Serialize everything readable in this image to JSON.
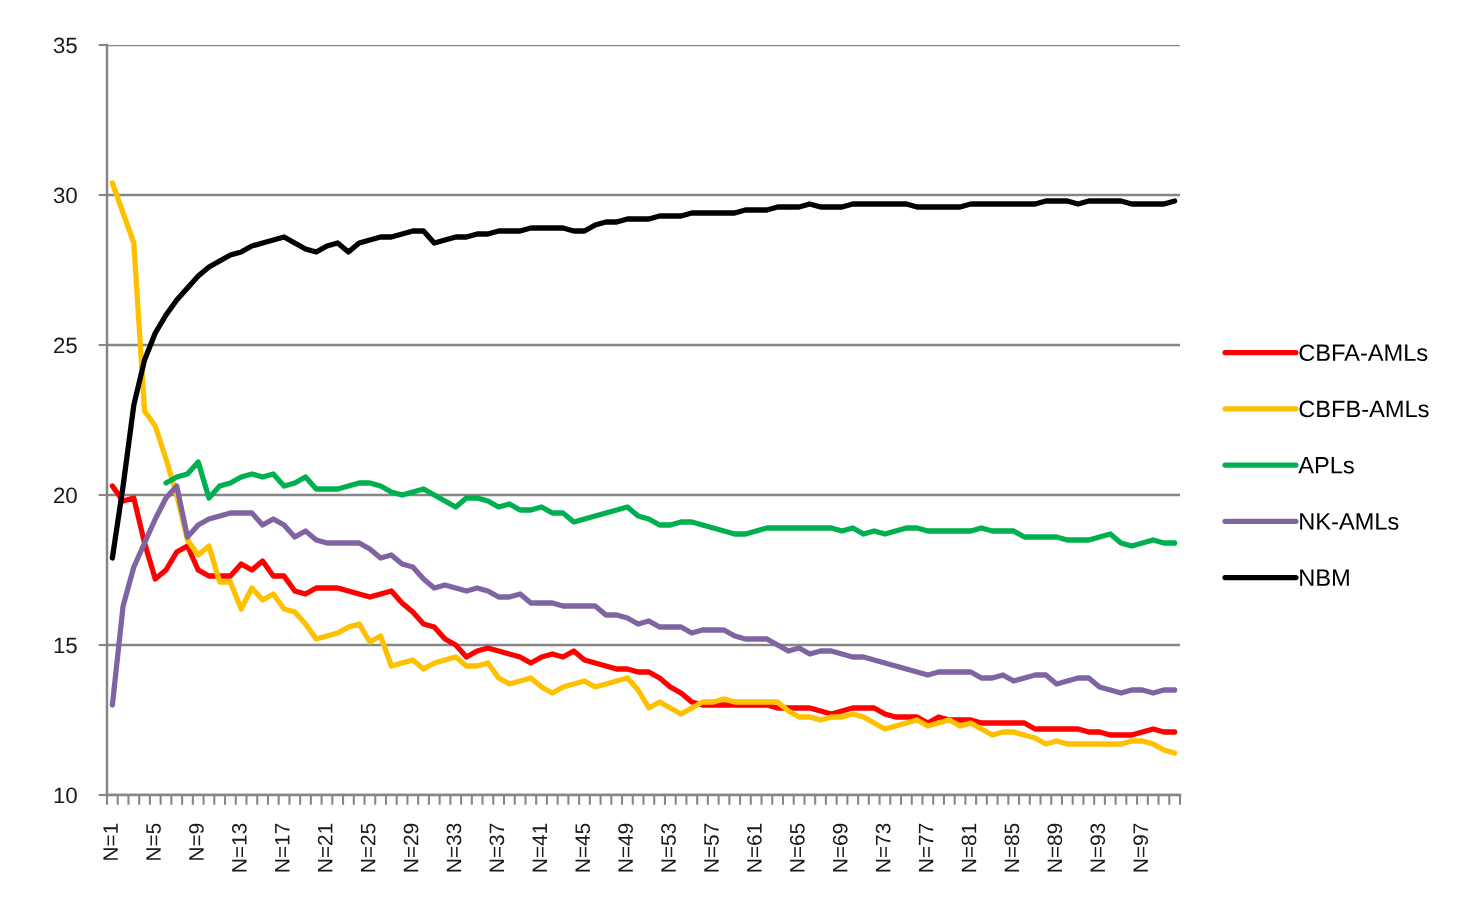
{
  "chart_data": {
    "type": "line",
    "categories": [
      "N=1",
      null,
      null,
      null,
      "N=5",
      null,
      null,
      null,
      "N=9",
      null,
      null,
      null,
      "N=13",
      null,
      null,
      null,
      "N=17",
      null,
      null,
      null,
      "N=21",
      null,
      null,
      null,
      "N=25",
      null,
      null,
      null,
      "N=29",
      null,
      null,
      null,
      "N=33",
      null,
      null,
      null,
      "N=37",
      null,
      null,
      null,
      "N=41",
      null,
      null,
      null,
      "N=45",
      null,
      null,
      null,
      "N=49",
      null,
      null,
      null,
      "N=53",
      null,
      null,
      null,
      "N=57",
      null,
      null,
      null,
      "N=61",
      null,
      null,
      null,
      "N=65",
      null,
      null,
      null,
      "N=69",
      null,
      null,
      null,
      "N=73",
      null,
      null,
      null,
      "N=77",
      null,
      null,
      null,
      "N=81",
      null,
      null,
      null,
      "N=85",
      null,
      null,
      null,
      "N=89",
      null,
      null,
      null,
      "N=93",
      null,
      null,
      null,
      "N=97",
      null,
      null,
      null
    ],
    "series": [
      {
        "name": "CBFA-AMLs",
        "color": "#ff0000",
        "values": [
          20.3,
          19.8,
          19.9,
          18.4,
          17.2,
          17.5,
          18.1,
          18.3,
          17.5,
          17.3,
          17.3,
          17.3,
          17.7,
          17.5,
          17.8,
          17.3,
          17.3,
          16.8,
          16.7,
          16.9,
          16.9,
          16.9,
          16.8,
          16.7,
          16.6,
          16.7,
          16.8,
          16.4,
          16.1,
          15.7,
          15.6,
          15.2,
          15.0,
          14.6,
          14.8,
          14.9,
          14.8,
          14.7,
          14.6,
          14.4,
          14.6,
          14.7,
          14.6,
          14.8,
          14.5,
          14.4,
          14.3,
          14.2,
          14.2,
          14.1,
          14.1,
          13.9,
          13.6,
          13.4,
          13.1,
          13.0,
          13.0,
          13.0,
          13.0,
          13.0,
          13.0,
          13.0,
          12.9,
          12.9,
          12.9,
          12.9,
          12.8,
          12.7,
          12.8,
          12.9,
          12.9,
          12.9,
          12.7,
          12.6,
          12.6,
          12.6,
          12.4,
          12.6,
          12.5,
          12.5,
          12.5,
          12.4,
          12.4,
          12.4,
          12.4,
          12.4,
          12.2,
          12.2,
          12.2,
          12.2,
          12.2,
          12.1,
          12.1,
          12.0,
          12.0,
          12.0,
          12.1,
          12.2,
          12.1,
          12.1
        ]
      },
      {
        "name": "CBFB-AMLs",
        "color": "#ffc000",
        "values": [
          30.4,
          29.4,
          28.4,
          22.8,
          22.3,
          21.2,
          20.0,
          18.5,
          18.0,
          18.3,
          17.1,
          17.1,
          16.2,
          16.9,
          16.5,
          16.7,
          16.2,
          16.1,
          15.7,
          15.2,
          15.3,
          15.4,
          15.6,
          15.7,
          15.1,
          15.3,
          14.3,
          14.4,
          14.5,
          14.2,
          14.4,
          14.5,
          14.6,
          14.3,
          14.3,
          14.4,
          13.9,
          13.7,
          13.8,
          13.9,
          13.6,
          13.4,
          13.6,
          13.7,
          13.8,
          13.6,
          13.7,
          13.8,
          13.9,
          13.5,
          12.9,
          13.1,
          12.9,
          12.7,
          12.9,
          13.1,
          13.1,
          13.2,
          13.1,
          13.1,
          13.1,
          13.1,
          13.1,
          12.8,
          12.6,
          12.6,
          12.5,
          12.6,
          12.6,
          12.7,
          12.6,
          12.4,
          12.2,
          12.3,
          12.4,
          12.5,
          12.3,
          12.4,
          12.5,
          12.3,
          12.4,
          12.2,
          12.0,
          12.1,
          12.1,
          12.0,
          11.9,
          11.7,
          11.8,
          11.7,
          11.7,
          11.7,
          11.7,
          11.7,
          11.7,
          11.8,
          11.8,
          11.7,
          11.5,
          11.4
        ]
      },
      {
        "name": "APLs",
        "color": "#00b050",
        "values": [
          null,
          null,
          null,
          null,
          null,
          20.4,
          20.6,
          20.7,
          21.1,
          19.9,
          20.3,
          20.4,
          20.6,
          20.7,
          20.6,
          20.7,
          20.3,
          20.4,
          20.6,
          20.2,
          20.2,
          20.2,
          20.3,
          20.4,
          20.4,
          20.3,
          20.1,
          20.0,
          20.1,
          20.2,
          20.0,
          19.8,
          19.6,
          19.9,
          19.9,
          19.8,
          19.6,
          19.7,
          19.5,
          19.5,
          19.6,
          19.4,
          19.4,
          19.1,
          19.2,
          19.3,
          19.4,
          19.5,
          19.6,
          19.3,
          19.2,
          19.0,
          19.0,
          19.1,
          19.1,
          19.0,
          18.9,
          18.8,
          18.7,
          18.7,
          18.8,
          18.9,
          18.9,
          18.9,
          18.9,
          18.9,
          18.9,
          18.9,
          18.8,
          18.9,
          18.7,
          18.8,
          18.7,
          18.8,
          18.9,
          18.9,
          18.8,
          18.8,
          18.8,
          18.8,
          18.8,
          18.9,
          18.8,
          18.8,
          18.8,
          18.6,
          18.6,
          18.6,
          18.6,
          18.5,
          18.5,
          18.5,
          18.6,
          18.7,
          18.4,
          18.3,
          18.4,
          18.5,
          18.4,
          18.4
        ]
      },
      {
        "name": "NK-AMLs",
        "color": "#8064a2",
        "values": [
          13.0,
          16.3,
          17.6,
          18.4,
          19.2,
          19.9,
          20.3,
          18.6,
          19.0,
          19.2,
          19.3,
          19.4,
          19.4,
          19.4,
          19.0,
          19.2,
          19.0,
          18.6,
          18.8,
          18.5,
          18.4,
          18.4,
          18.4,
          18.4,
          18.2,
          17.9,
          18.0,
          17.7,
          17.6,
          17.2,
          16.9,
          17.0,
          16.9,
          16.8,
          16.9,
          16.8,
          16.6,
          16.6,
          16.7,
          16.4,
          16.4,
          16.4,
          16.3,
          16.3,
          16.3,
          16.3,
          16.0,
          16.0,
          15.9,
          15.7,
          15.8,
          15.6,
          15.6,
          15.6,
          15.4,
          15.5,
          15.5,
          15.5,
          15.3,
          15.2,
          15.2,
          15.2,
          15.0,
          14.8,
          14.9,
          14.7,
          14.8,
          14.8,
          14.7,
          14.6,
          14.6,
          14.5,
          14.4,
          14.3,
          14.2,
          14.1,
          14.0,
          14.1,
          14.1,
          14.1,
          14.1,
          13.9,
          13.9,
          14.0,
          13.8,
          13.9,
          14.0,
          14.0,
          13.7,
          13.8,
          13.9,
          13.9,
          13.6,
          13.5,
          13.4,
          13.5,
          13.5,
          13.4,
          13.5,
          13.5
        ]
      },
      {
        "name": "NBM",
        "color": "#000000",
        "values": [
          17.9,
          20.3,
          23.0,
          24.5,
          25.4,
          26.0,
          26.5,
          26.9,
          27.3,
          27.6,
          27.8,
          28.0,
          28.1,
          28.3,
          28.4,
          28.5,
          28.6,
          28.4,
          28.2,
          28.1,
          28.3,
          28.4,
          28.1,
          28.4,
          28.5,
          28.6,
          28.6,
          28.7,
          28.8,
          28.8,
          28.4,
          28.5,
          28.6,
          28.6,
          28.7,
          28.7,
          28.8,
          28.8,
          28.8,
          28.9,
          28.9,
          28.9,
          28.9,
          28.8,
          28.8,
          29.0,
          29.1,
          29.1,
          29.2,
          29.2,
          29.2,
          29.3,
          29.3,
          29.3,
          29.4,
          29.4,
          29.4,
          29.4,
          29.4,
          29.5,
          29.5,
          29.5,
          29.6,
          29.6,
          29.6,
          29.7,
          29.6,
          29.6,
          29.6,
          29.7,
          29.7,
          29.7,
          29.7,
          29.7,
          29.7,
          29.6,
          29.6,
          29.6,
          29.6,
          29.6,
          29.7,
          29.7,
          29.7,
          29.7,
          29.7,
          29.7,
          29.7,
          29.8,
          29.8,
          29.8,
          29.7,
          29.8,
          29.8,
          29.8,
          29.8,
          29.7,
          29.7,
          29.7,
          29.7,
          29.8
        ]
      }
    ],
    "ylim": [
      10,
      35
    ],
    "yticks": [
      10,
      15,
      20,
      25,
      30,
      35
    ],
    "grid": "y",
    "legend": "right",
    "line_style": "solid"
  }
}
